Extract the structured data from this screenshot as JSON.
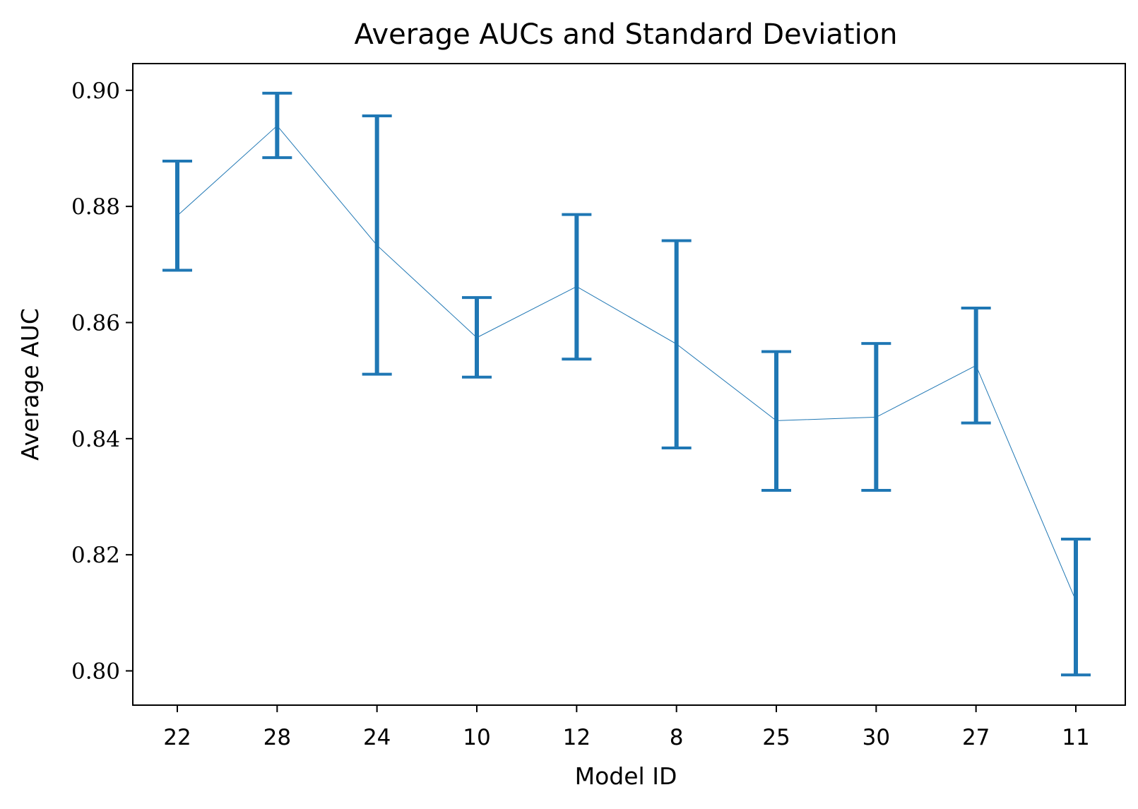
{
  "chart_data": {
    "type": "line",
    "title": "Average AUCs and Standard Deviation",
    "xlabel": "Model ID",
    "ylabel": "Average AUC",
    "categories": [
      "22",
      "28",
      "24",
      "10",
      "12",
      "8",
      "25",
      "30",
      "27",
      "11"
    ],
    "series": [
      {
        "values": [
          0.8784,
          0.8939,
          0.8733,
          0.8574,
          0.8662,
          0.8563,
          0.8431,
          0.8437,
          0.8526,
          0.8121
        ],
        "lower": [
          0.869,
          0.8884,
          0.8511,
          0.8506,
          0.8537,
          0.8384,
          0.8311,
          0.8311,
          0.8427,
          0.7993
        ],
        "upper": [
          0.8878,
          0.8995,
          0.8956,
          0.8643,
          0.8786,
          0.8741,
          0.855,
          0.8564,
          0.8625,
          0.8227
        ]
      }
    ],
    "ylim": [
      0.7941,
      0.9046
    ],
    "yticks": [
      "0.80",
      "0.82",
      "0.84",
      "0.86",
      "0.88",
      "0.90"
    ],
    "grid": false,
    "color": "#1f77b4"
  }
}
